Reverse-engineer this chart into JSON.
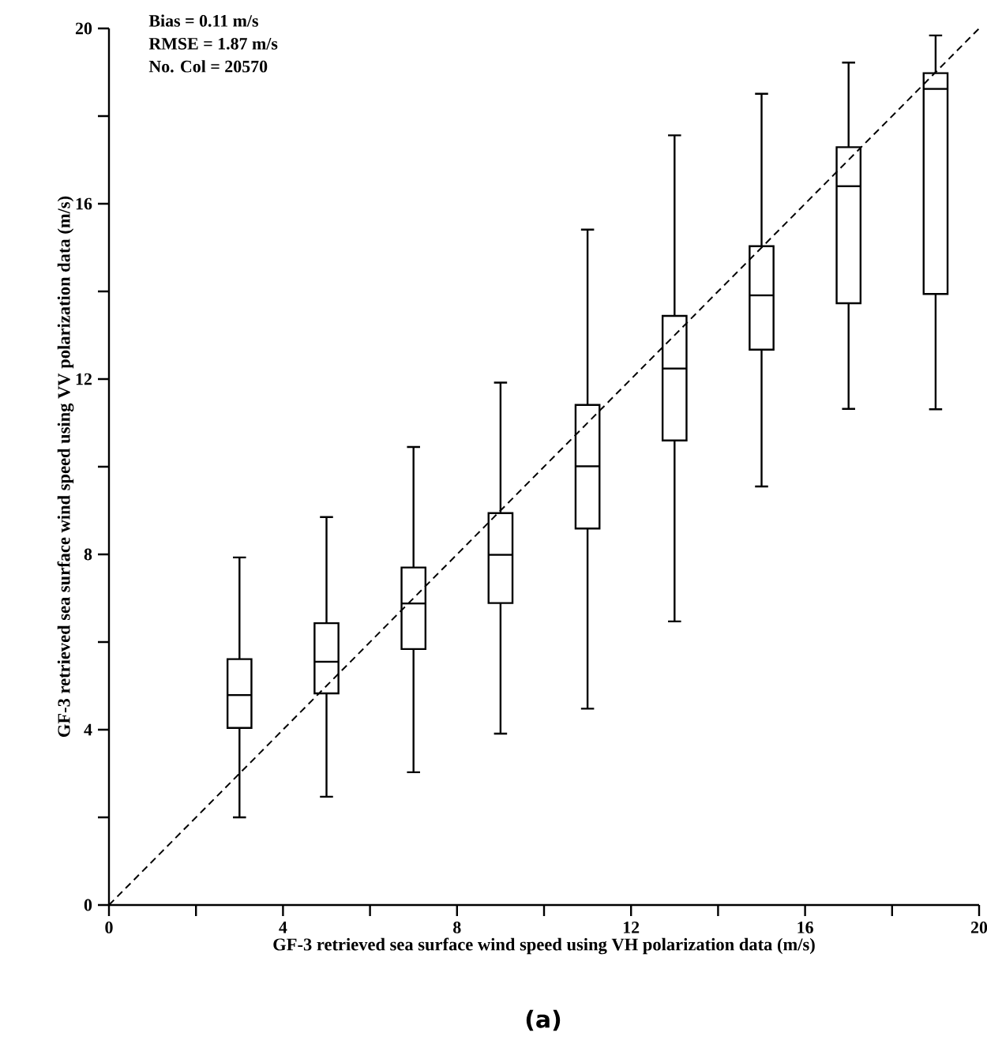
{
  "chart_data": {
    "type": "box",
    "xlabel": "GF-3 retrieved sea surface wind speed using VH polarization data (m/s)",
    "ylabel": "GF-3 retrieved sea surface wind speed using VV polarization data (m/s)",
    "annotations": [
      "Bias = 0.11 m/s",
      "RMSE = 1.87 m/s",
      "No. Col = 20570",
      "(a)"
    ],
    "xlim": [
      0,
      20
    ],
    "ylim": [
      0,
      20
    ],
    "xticks": [
      0,
      {
        "value": 2,
        "label": null
      },
      4,
      {
        "value": 6,
        "label": null
      },
      8,
      {
        "value": 10,
        "label": null
      },
      12,
      {
        "value": 14,
        "label": null
      },
      16,
      {
        "value": 18,
        "label": null
      },
      20
    ],
    "yticks": [
      0,
      {
        "value": 2,
        "label": null
      },
      4,
      {
        "value": 6,
        "label": null
      },
      8,
      {
        "value": 10,
        "label": null
      },
      12,
      {
        "value": 14,
        "label": null
      },
      16,
      {
        "value": 18,
        "label": null
      },
      20
    ],
    "series": [
      {
        "color": "#000000",
        "x": [
          3,
          5,
          7,
          9,
          11,
          13,
          15,
          17,
          19
        ],
        "boxes": [
          {
            "low": 2.0,
            "q1": 4.04,
            "median": 4.79,
            "q3": 5.61,
            "high": 7.93
          },
          {
            "low": 2.47,
            "q1": 4.83,
            "median": 5.55,
            "q3": 6.43,
            "high": 8.85
          },
          {
            "low": 3.03,
            "q1": 5.84,
            "median": 6.88,
            "q3": 7.7,
            "high": 10.45
          },
          {
            "low": 3.91,
            "q1": 6.89,
            "median": 7.99,
            "q3": 8.94,
            "high": 11.92
          },
          {
            "low": 4.48,
            "q1": 8.59,
            "median": 10.01,
            "q3": 11.41,
            "high": 15.41
          },
          {
            "low": 6.47,
            "q1": 10.6,
            "median": 12.24,
            "q3": 13.44,
            "high": 17.56
          },
          {
            "low": 9.55,
            "q1": 12.67,
            "median": 13.91,
            "q3": 15.03,
            "high": 18.51
          },
          {
            "low": 11.32,
            "q1": 13.73,
            "median": 16.4,
            "q3": 17.29,
            "high": 19.22
          },
          {
            "low": 11.31,
            "q1": 13.94,
            "median": 18.62,
            "q3": 18.98,
            "high": 19.84
          }
        ]
      },
      {
        "type": "line",
        "color": "#000000",
        "line_style": "dashed",
        "marker": "none",
        "x": [
          0,
          20
        ],
        "values": [
          0,
          20
        ]
      }
    ]
  }
}
